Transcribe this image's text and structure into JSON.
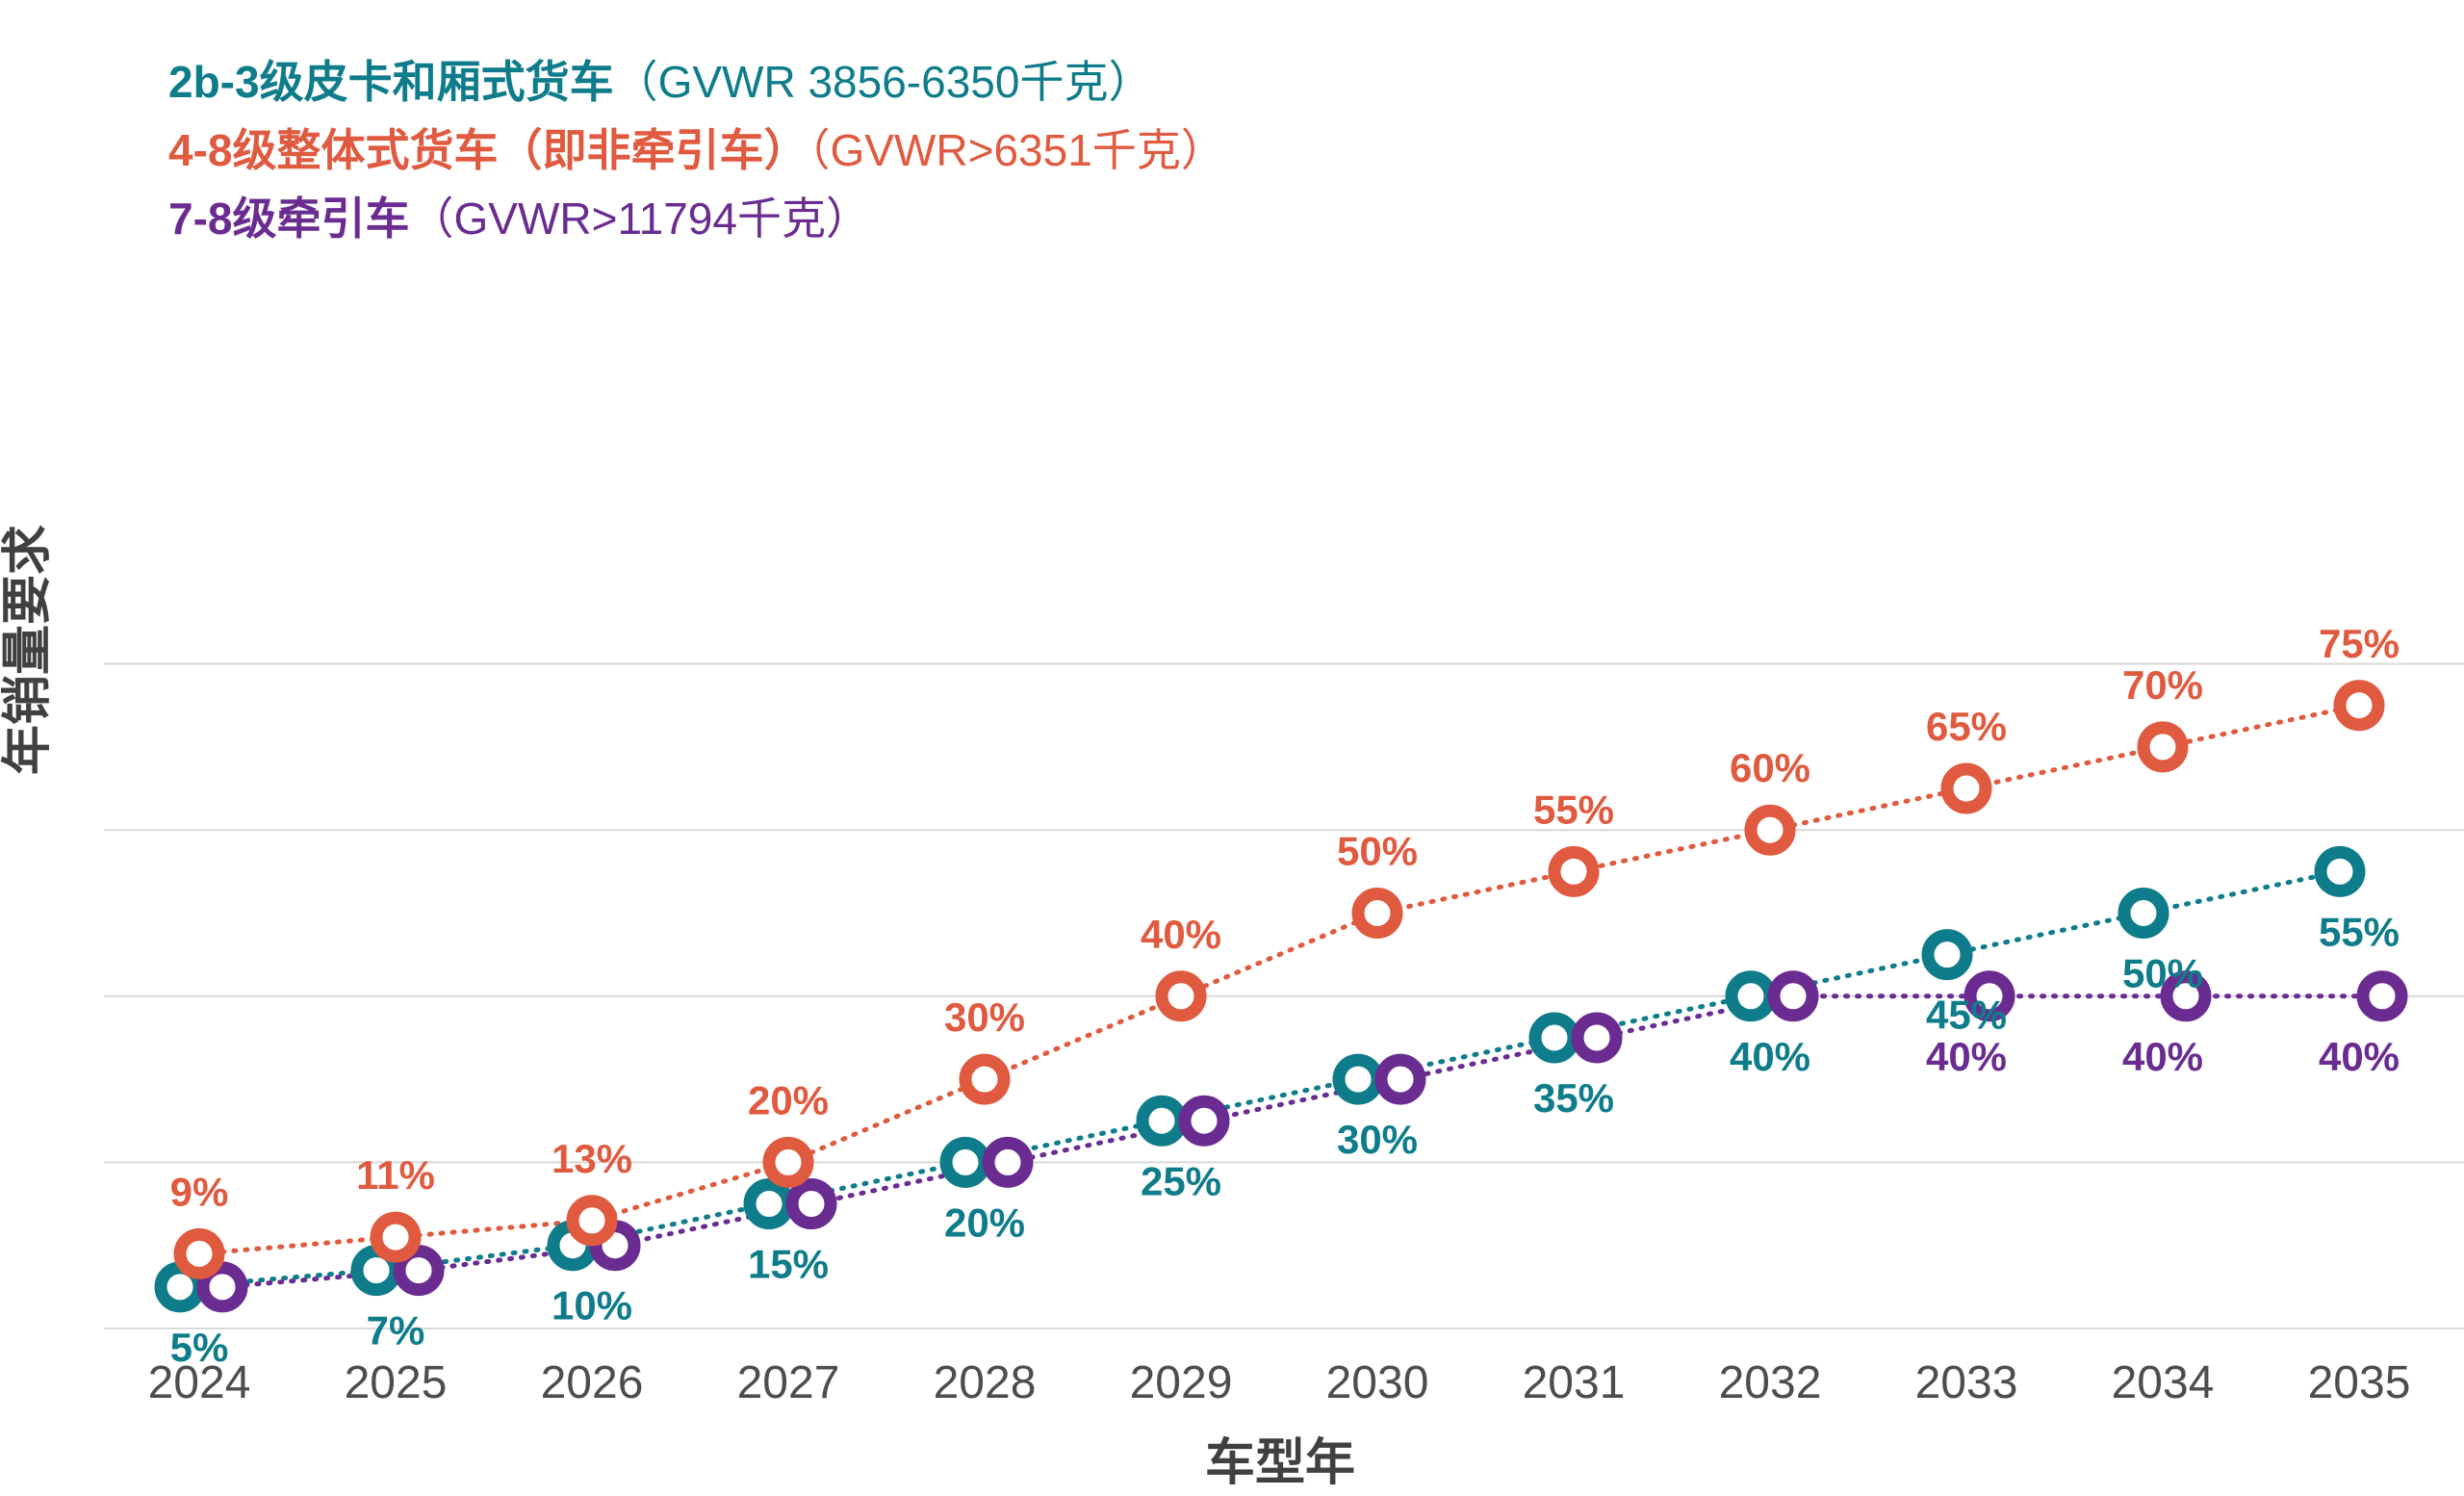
{
  "chart_data": {
    "type": "line",
    "categories": [
      "2024",
      "2025",
      "2026",
      "2027",
      "2028",
      "2029",
      "2030",
      "2031",
      "2032",
      "2033",
      "2034",
      "2035"
    ],
    "xlabel": "车型年",
    "ylabel": "年销量要求",
    "ylim": [
      0,
      80
    ],
    "grid": true,
    "legend_position": "top-left",
    "series": [
      {
        "name": "2b-3级皮卡和厢式货车",
        "name_detail": "（GVWR 3856-6350千克）",
        "color": "#0e7c8a",
        "values": [
          5,
          7,
          10,
          15,
          20,
          25,
          30,
          35,
          40,
          45,
          50,
          55
        ],
        "labels": [
          "5%",
          "7%",
          "10%",
          "15%",
          "20%",
          "25%",
          "30%",
          "35%",
          "40%",
          "45%",
          "50%",
          "55%"
        ]
      },
      {
        "name": "4-8级整体式货车（即非牵引车）",
        "name_detail": "（GVWR>6351千克）",
        "color": "#e05a3f",
        "values": [
          9,
          11,
          13,
          20,
          30,
          40,
          50,
          55,
          60,
          65,
          70,
          75
        ],
        "labels": [
          "9%",
          "11%",
          "13%",
          "20%",
          "30%",
          "40%",
          "50%",
          "55%",
          "60%",
          "65%",
          "70%",
          "75%"
        ]
      },
      {
        "name": "7-8级牵引车",
        "name_detail": "（GVWR>11794千克）",
        "color": "#6a2c91",
        "values": [
          5,
          7,
          10,
          15,
          20,
          25,
          30,
          35,
          40,
          40,
          40,
          40
        ],
        "labels": [
          "",
          "",
          "",
          "",
          "",
          "",
          "",
          "",
          "",
          "40%",
          "40%",
          "40%"
        ]
      }
    ]
  }
}
